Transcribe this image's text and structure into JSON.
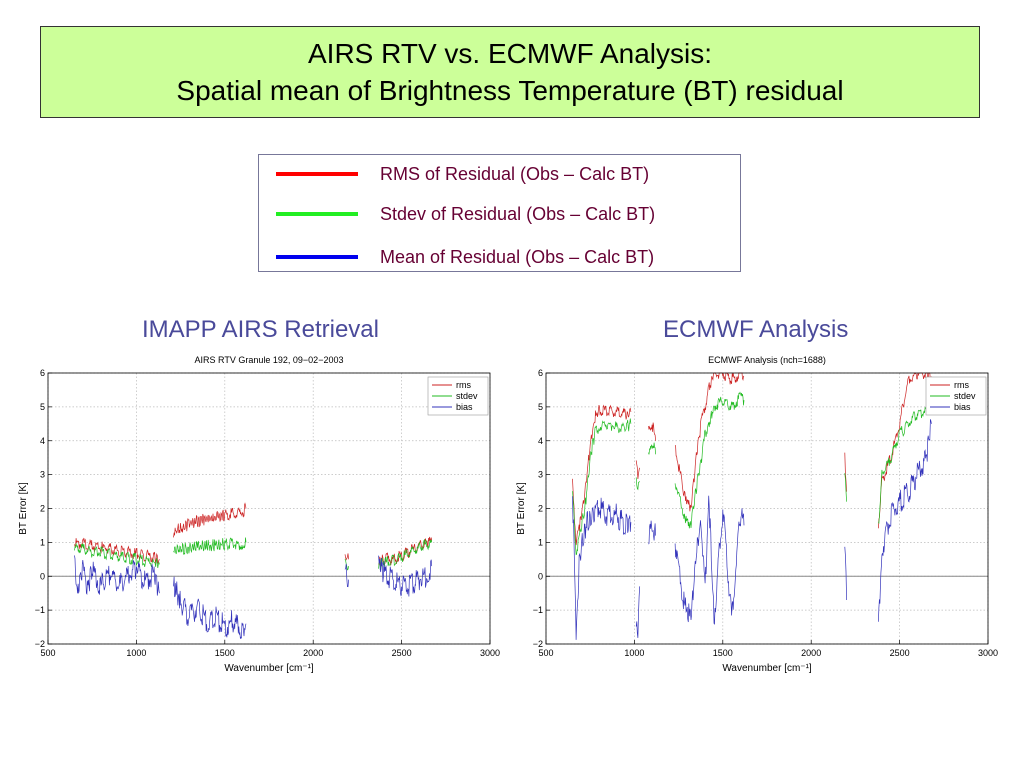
{
  "slide": {
    "title_line1": "AIRS RTV vs. ECMWF Analysis:",
    "title_line2": "Spatial mean of Brightness Temperature (BT) residual",
    "background": "#ffffff",
    "title_box_color": "#ccff99"
  },
  "legend": [
    {
      "label": "RMS of Residual (Obs – Calc  BT)",
      "color": "#ff0000"
    },
    {
      "label": "Stdev of Residual (Obs – Calc BT)",
      "color": "#22ee22"
    },
    {
      "label": "Mean of Residual (Obs – Calc BT)",
      "color": "#0000ee"
    }
  ],
  "panels": {
    "left_title": "IMAPP AIRS Retrieval",
    "right_title": "ECMWF Analysis"
  },
  "chart_data": [
    {
      "type": "line",
      "title": "AIRS RTV Granule 192, 09−02−2003",
      "xlabel": "Wavenumber [cm⁻¹]",
      "ylabel": "BT Error [K]",
      "xlim": [
        500,
        3000
      ],
      "ylim": [
        -2,
        6
      ],
      "xticks": [
        500,
        1000,
        1500,
        2000,
        2500,
        3000
      ],
      "yticks": [
        -2,
        -1,
        0,
        1,
        2,
        3,
        4,
        5,
        6
      ],
      "grid": true,
      "legend_position": "top-right",
      "series": [
        {
          "name": "rms",
          "color": "#cc2222",
          "segments": [
            [
              [
                650,
                1.0
              ],
              [
                700,
                0.95
              ],
              [
                750,
                0.9
              ],
              [
                800,
                0.85
              ],
              [
                850,
                0.8
              ],
              [
                900,
                0.75
              ],
              [
                950,
                0.7
              ],
              [
                1000,
                0.65
              ],
              [
                1050,
                0.6
              ],
              [
                1100,
                0.55
              ],
              [
                1130,
                0.5
              ]
            ],
            [
              [
                1210,
                1.3
              ],
              [
                1300,
                1.55
              ],
              [
                1400,
                1.7
              ],
              [
                1500,
                1.8
              ],
              [
                1550,
                1.85
              ],
              [
                1600,
                1.9
              ],
              [
                1620,
                2.0
              ]
            ],
            [
              [
                2180,
                0.7
              ],
              [
                2190,
                0.6
              ],
              [
                2200,
                0.5
              ]
            ],
            [
              [
                2370,
                0.4
              ],
              [
                2400,
                0.5
              ],
              [
                2450,
                0.5
              ],
              [
                2500,
                0.6
              ],
              [
                2550,
                0.75
              ],
              [
                2600,
                0.9
              ],
              [
                2650,
                1.0
              ],
              [
                2670,
                1.05
              ]
            ]
          ]
        },
        {
          "name": "stdev",
          "color": "#22bb22",
          "segments": [
            [
              [
                650,
                0.8
              ],
              [
                700,
                0.8
              ],
              [
                750,
                0.7
              ],
              [
                800,
                0.7
              ],
              [
                850,
                0.65
              ],
              [
                900,
                0.6
              ],
              [
                950,
                0.55
              ],
              [
                1000,
                0.5
              ],
              [
                1050,
                0.45
              ],
              [
                1100,
                0.4
              ],
              [
                1130,
                0.35
              ]
            ],
            [
              [
                1210,
                0.8
              ],
              [
                1300,
                0.85
              ],
              [
                1400,
                0.9
              ],
              [
                1500,
                0.95
              ],
              [
                1550,
                0.95
              ],
              [
                1600,
                0.95
              ],
              [
                1620,
                1.0
              ]
            ],
            [
              [
                2180,
                0.5
              ],
              [
                2190,
                0.4
              ],
              [
                2200,
                0.3
              ]
            ],
            [
              [
                2370,
                0.3
              ],
              [
                2400,
                0.4
              ],
              [
                2450,
                0.45
              ],
              [
                2500,
                0.55
              ],
              [
                2550,
                0.7
              ],
              [
                2600,
                0.85
              ],
              [
                2650,
                0.95
              ],
              [
                2670,
                1.0
              ]
            ]
          ]
        },
        {
          "name": "bias",
          "color": "#3333bb",
          "segments": [
            [
              [
                650,
                0.3
              ],
              [
                670,
                -0.4
              ],
              [
                700,
                0.2
              ],
              [
                720,
                -0.5
              ],
              [
                750,
                0.2
              ],
              [
                800,
                -0.3
              ],
              [
                850,
                0.1
              ],
              [
                900,
                -0.3
              ],
              [
                950,
                0.0
              ],
              [
                1000,
                0.3
              ],
              [
                1050,
                -0.2
              ],
              [
                1100,
                0.1
              ],
              [
                1130,
                -0.5
              ]
            ],
            [
              [
                1210,
                -0.2
              ],
              [
                1250,
                -0.8
              ],
              [
                1300,
                -1.2
              ],
              [
                1350,
                -0.9
              ],
              [
                1400,
                -1.4
              ],
              [
                1450,
                -1.2
              ],
              [
                1500,
                -1.5
              ],
              [
                1550,
                -1.3
              ],
              [
                1600,
                -1.6
              ],
              [
                1620,
                -1.4
              ]
            ],
            [
              [
                2180,
                0.2
              ],
              [
                2190,
                0.0
              ],
              [
                2200,
                -0.1
              ]
            ],
            [
              [
                2370,
                0.3
              ],
              [
                2400,
                0.1
              ],
              [
                2450,
                -0.1
              ],
              [
                2500,
                -0.3
              ],
              [
                2550,
                -0.25
              ],
              [
                2600,
                -0.1
              ],
              [
                2650,
                0.0
              ],
              [
                2670,
                0.3
              ]
            ]
          ]
        }
      ]
    },
    {
      "type": "line",
      "title": "ECMWF Analysis (nch=1688)",
      "xlabel": "Wavenumber [cm⁻¹]",
      "ylabel": "BT Error [K]",
      "xlim": [
        500,
        3000
      ],
      "ylim": [
        -2,
        6
      ],
      "xticks": [
        500,
        1000,
        1500,
        2000,
        2500,
        3000
      ],
      "yticks": [
        -2,
        -1,
        0,
        1,
        2,
        3,
        4,
        5,
        6
      ],
      "grid": true,
      "legend_position": "top-right",
      "series": [
        {
          "name": "rms",
          "color": "#cc2222",
          "segments": [
            [
              [
                650,
                2.7
              ],
              [
                670,
                1.0
              ],
              [
                690,
                1.5
              ],
              [
                720,
                2.5
              ],
              [
                750,
                3.8
              ],
              [
                780,
                4.8
              ],
              [
                800,
                4.9
              ],
              [
                850,
                4.9
              ],
              [
                900,
                4.85
              ],
              [
                950,
                4.8
              ],
              [
                980,
                4.85
              ]
            ],
            [
              [
                1010,
                3.5
              ],
              [
                1020,
                2.8
              ],
              [
                1030,
                3.2
              ]
            ],
            [
              [
                1080,
                4.3
              ],
              [
                1100,
                4.5
              ],
              [
                1120,
                4.0
              ]
            ],
            [
              [
                1230,
                3.8
              ],
              [
                1280,
                2.5
              ],
              [
                1320,
                2.0
              ],
              [
                1350,
                3.5
              ],
              [
                1380,
                4.6
              ],
              [
                1400,
                5.0
              ],
              [
                1420,
                5.5
              ],
              [
                1450,
                6.0
              ],
              [
                1500,
                6.0
              ],
              [
                1550,
                5.8
              ],
              [
                1600,
                6.0
              ],
              [
                1620,
                5.9
              ]
            ],
            [
              [
                2190,
                3.5
              ],
              [
                2200,
                2.5
              ]
            ],
            [
              [
                2380,
                1.5
              ],
              [
                2400,
                2.8
              ],
              [
                2450,
                3.5
              ],
              [
                2500,
                4.5
              ],
              [
                2550,
                5.8
              ],
              [
                2600,
                6.0
              ],
              [
                2650,
                6.0
              ],
              [
                2680,
                5.9
              ]
            ]
          ]
        },
        {
          "name": "stdev",
          "color": "#22bb22",
          "segments": [
            [
              [
                650,
                2.5
              ],
              [
                670,
                0.7
              ],
              [
                690,
                1.2
              ],
              [
                720,
                2.0
              ],
              [
                750,
                3.5
              ],
              [
                780,
                4.3
              ],
              [
                800,
                4.4
              ],
              [
                850,
                4.5
              ],
              [
                900,
                4.4
              ],
              [
                950,
                4.4
              ],
              [
                980,
                4.5
              ]
            ],
            [
              [
                1010,
                3.0
              ],
              [
                1020,
                2.5
              ],
              [
                1030,
                2.8
              ]
            ],
            [
              [
                1080,
                3.5
              ],
              [
                1100,
                4.0
              ],
              [
                1120,
                3.6
              ]
            ],
            [
              [
                1230,
                2.8
              ],
              [
                1280,
                1.8
              ],
              [
                1320,
                1.5
              ],
              [
                1350,
                2.6
              ],
              [
                1380,
                3.5
              ],
              [
                1400,
                4.2
              ],
              [
                1420,
                4.5
              ],
              [
                1450,
                5.0
              ],
              [
                1500,
                5.2
              ],
              [
                1550,
                5.0
              ],
              [
                1600,
                5.3
              ],
              [
                1620,
                5.2
              ]
            ],
            [
              [
                2190,
                3.0
              ],
              [
                2200,
                2.2
              ]
            ],
            [
              [
                2380,
                1.5
              ],
              [
                2400,
                3.0
              ],
              [
                2450,
                3.5
              ],
              [
                2500,
                4.2
              ],
              [
                2550,
                4.5
              ],
              [
                2600,
                4.8
              ],
              [
                2650,
                4.9
              ],
              [
                2680,
                5.0
              ]
            ]
          ]
        },
        {
          "name": "bias",
          "color": "#3333bb",
          "segments": [
            [
              [
                650,
                2.5
              ],
              [
                670,
                -1.6
              ],
              [
                690,
                0.6
              ],
              [
                720,
                1.4
              ],
              [
                750,
                1.8
              ],
              [
                780,
                2.0
              ],
              [
                800,
                2.05
              ],
              [
                850,
                1.8
              ],
              [
                900,
                1.8
              ],
              [
                950,
                1.5
              ],
              [
                980,
                1.6
              ]
            ],
            [
              [
                1010,
                -1.2
              ],
              [
                1020,
                -1.5
              ],
              [
                1030,
                -0.3
              ]
            ],
            [
              [
                1080,
                1.2
              ],
              [
                1100,
                1.5
              ],
              [
                1120,
                1.2
              ]
            ],
            [
              [
                1230,
                1.0
              ],
              [
                1280,
                -0.8
              ],
              [
                1320,
                -1.2
              ],
              [
                1350,
                0.8
              ],
              [
                1380,
                1.5
              ],
              [
                1400,
                -0.5
              ],
              [
                1420,
                2.5
              ],
              [
                1450,
                -1.3
              ],
              [
                1500,
                2.0
              ],
              [
                1550,
                -1.2
              ],
              [
                1600,
                1.8
              ],
              [
                1620,
                1.5
              ]
            ],
            [
              [
                2190,
                0.8
              ],
              [
                2200,
                -0.7
              ]
            ],
            [
              [
                2380,
                -1.6
              ],
              [
                2400,
                0.8
              ],
              [
                2450,
                1.8
              ],
              [
                2500,
                2.2
              ],
              [
                2550,
                2.5
              ],
              [
                2600,
                3.0
              ],
              [
                2650,
                3.5
              ],
              [
                2680,
                4.5
              ]
            ]
          ]
        }
      ]
    }
  ]
}
